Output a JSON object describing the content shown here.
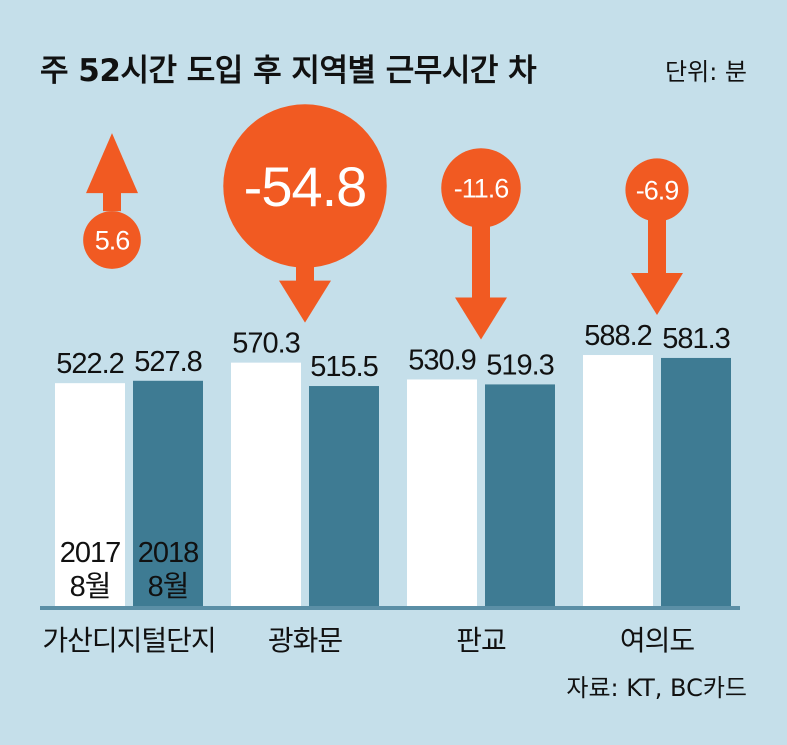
{
  "chart_data": {
    "type": "bar",
    "title": "주 52시간 도입 후 지역별 근무시간 차",
    "unit_label": "단위: 분",
    "source": "자료: KT, BC카드",
    "categories": [
      "가산디지털단지",
      "광화문",
      "판교",
      "여의도"
    ],
    "series": [
      {
        "name": "2017 8월",
        "name_lines": [
          "2017",
          "8월"
        ],
        "values": [
          522.2,
          570.3,
          530.9,
          588.2
        ],
        "value_labels": [
          "522.2",
          "570.3",
          "530.9",
          "588.2"
        ],
        "color": "#ffffff"
      },
      {
        "name": "2018 8월",
        "name_lines": [
          "2018",
          "8월"
        ],
        "values": [
          527.8,
          515.5,
          519.3,
          581.3
        ],
        "value_labels": [
          "527.8",
          "515.5",
          "519.3",
          "581.3"
        ],
        "color": "#3e7b93"
      }
    ],
    "differences": [
      5.6,
      -54.8,
      -11.6,
      -6.9
    ],
    "difference_labels": [
      "5.6",
      "-54.8",
      "-11.6",
      "-6.9"
    ],
    "ylim": [
      0,
      600
    ],
    "accent_color": "#f15a22",
    "axis_color": "#5b8fa6",
    "legend_placement": "inside-first-group-bottom"
  }
}
